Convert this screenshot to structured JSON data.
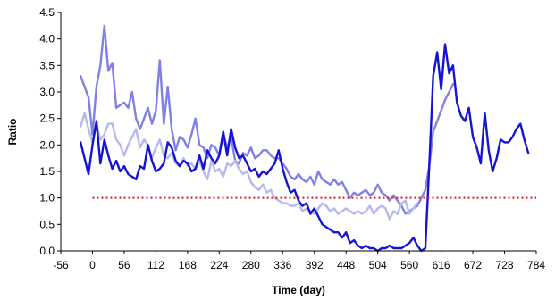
{
  "chart_data": {
    "type": "line",
    "title": "",
    "xlabel": "Time (day)",
    "ylabel": "Ratio",
    "xlim": [
      -56,
      784
    ],
    "ylim": [
      0,
      4.5
    ],
    "xticks": [
      -56,
      0,
      56,
      112,
      168,
      224,
      280,
      336,
      392,
      448,
      504,
      560,
      616,
      672,
      728,
      784
    ],
    "yticks": [
      0,
      0.5,
      1,
      1.5,
      2,
      2.5,
      3,
      3.5,
      4,
      4.5
    ],
    "ytick_labels": [
      "0.0",
      "0.5",
      "1.0",
      "1.5",
      "2.0",
      "2.5",
      "3.0",
      "3.5",
      "4.0",
      "4.5"
    ],
    "grid": false,
    "legend": "none",
    "reference_line": {
      "y": 1.0,
      "color": "#e8141e",
      "style": "dotted"
    },
    "series": [
      {
        "color": "#8080e6",
        "points": [
          [
            -21,
            3.3
          ],
          [
            -14,
            3.1
          ],
          [
            -7,
            2.9
          ],
          [
            0,
            2.2
          ],
          [
            7,
            3.1
          ],
          [
            14,
            3.5
          ],
          [
            21,
            4.25
          ],
          [
            28,
            3.4
          ],
          [
            35,
            3.55
          ],
          [
            42,
            2.7
          ],
          [
            49,
            2.75
          ],
          [
            56,
            2.8
          ],
          [
            63,
            2.7
          ],
          [
            70,
            3.0
          ],
          [
            77,
            2.5
          ],
          [
            84,
            2.3
          ],
          [
            91,
            2.5
          ],
          [
            98,
            2.7
          ],
          [
            105,
            2.4
          ],
          [
            112,
            2.65
          ],
          [
            119,
            3.6
          ],
          [
            126,
            2.4
          ],
          [
            133,
            3.1
          ],
          [
            140,
            2.3
          ],
          [
            147,
            1.9
          ],
          [
            154,
            2.15
          ],
          [
            161,
            2.1
          ],
          [
            168,
            1.95
          ],
          [
            175,
            2.2
          ],
          [
            182,
            2.5
          ],
          [
            189,
            2.0
          ],
          [
            196,
            1.95
          ],
          [
            203,
            1.75
          ],
          [
            210,
            2.0
          ],
          [
            217,
            1.95
          ],
          [
            224,
            1.8
          ],
          [
            231,
            2.2
          ],
          [
            238,
            1.95
          ],
          [
            245,
            2.15
          ],
          [
            252,
            1.7
          ],
          [
            259,
            1.65
          ],
          [
            266,
            1.85
          ],
          [
            273,
            1.8
          ],
          [
            280,
            1.95
          ],
          [
            287,
            1.75
          ],
          [
            294,
            1.8
          ],
          [
            301,
            1.9
          ],
          [
            308,
            1.9
          ],
          [
            315,
            1.8
          ],
          [
            322,
            1.75
          ],
          [
            329,
            1.75
          ],
          [
            336,
            1.65
          ],
          [
            343,
            1.55
          ],
          [
            350,
            1.4
          ],
          [
            357,
            1.35
          ],
          [
            364,
            1.45
          ],
          [
            371,
            1.35
          ],
          [
            378,
            1.3
          ],
          [
            385,
            1.4
          ],
          [
            392,
            1.25
          ],
          [
            399,
            1.5
          ],
          [
            406,
            1.35
          ],
          [
            413,
            1.3
          ],
          [
            420,
            1.25
          ],
          [
            427,
            1.35
          ],
          [
            434,
            1.25
          ],
          [
            441,
            1.3
          ],
          [
            448,
            1.15
          ],
          [
            455,
            1.0
          ],
          [
            462,
            1.1
          ],
          [
            469,
            1.05
          ],
          [
            476,
            1.1
          ],
          [
            483,
            1.15
          ],
          [
            490,
            1.05
          ],
          [
            497,
            1.1
          ],
          [
            504,
            1.25
          ],
          [
            511,
            1.1
          ],
          [
            518,
            1.05
          ],
          [
            525,
            0.95
          ],
          [
            532,
            1.05
          ],
          [
            539,
            0.95
          ],
          [
            546,
            0.85
          ],
          [
            553,
            0.7
          ],
          [
            560,
            0.75
          ],
          [
            567,
            0.8
          ],
          [
            574,
            0.85
          ],
          [
            581,
            1.0
          ],
          [
            588,
            1.15
          ],
          [
            595,
            1.6
          ],
          [
            602,
            2.25
          ],
          [
            609,
            2.45
          ],
          [
            616,
            2.65
          ],
          [
            623,
            2.85
          ],
          [
            630,
            3.0
          ],
          [
            637,
            3.15
          ]
        ]
      },
      {
        "color": "#b8b8ee",
        "points": [
          [
            -21,
            2.35
          ],
          [
            -14,
            2.6
          ],
          [
            -7,
            2.3
          ],
          [
            0,
            2.05
          ],
          [
            7,
            2.4
          ],
          [
            14,
            2.1
          ],
          [
            21,
            2.2
          ],
          [
            28,
            2.4
          ],
          [
            35,
            2.4
          ],
          [
            42,
            2.1
          ],
          [
            49,
            2.0
          ],
          [
            56,
            1.8
          ],
          [
            63,
            2.0
          ],
          [
            70,
            2.15
          ],
          [
            77,
            2.3
          ],
          [
            84,
            1.95
          ],
          [
            91,
            2.1
          ],
          [
            98,
            2.0
          ],
          [
            105,
            1.75
          ],
          [
            112,
            1.95
          ],
          [
            119,
            2.1
          ],
          [
            126,
            1.8
          ],
          [
            133,
            1.75
          ],
          [
            140,
            1.85
          ],
          [
            147,
            1.65
          ],
          [
            154,
            1.6
          ],
          [
            161,
            1.75
          ],
          [
            168,
            1.6
          ],
          [
            175,
            1.65
          ],
          [
            182,
            1.55
          ],
          [
            189,
            1.7
          ],
          [
            196,
            1.5
          ],
          [
            203,
            1.35
          ],
          [
            210,
            1.7
          ],
          [
            217,
            1.5
          ],
          [
            224,
            1.55
          ],
          [
            231,
            1.4
          ],
          [
            238,
            1.65
          ],
          [
            245,
            1.6
          ],
          [
            252,
            1.7
          ],
          [
            259,
            1.55
          ],
          [
            266,
            1.45
          ],
          [
            273,
            1.5
          ],
          [
            280,
            1.3
          ],
          [
            287,
            1.2
          ],
          [
            294,
            1.15
          ],
          [
            301,
            1.25
          ],
          [
            308,
            1.1
          ],
          [
            315,
            1.15
          ],
          [
            322,
            1.0
          ],
          [
            329,
            0.95
          ],
          [
            336,
            0.9
          ],
          [
            343,
            0.9
          ],
          [
            350,
            0.85
          ],
          [
            357,
            0.85
          ],
          [
            364,
            0.9
          ],
          [
            371,
            0.75
          ],
          [
            378,
            0.8
          ],
          [
            385,
            0.75
          ],
          [
            392,
            0.7
          ],
          [
            399,
            0.8
          ],
          [
            406,
            0.9
          ],
          [
            413,
            0.85
          ],
          [
            420,
            0.75
          ],
          [
            427,
            0.8
          ],
          [
            434,
            0.7
          ],
          [
            441,
            0.75
          ],
          [
            448,
            0.8
          ],
          [
            455,
            0.75
          ],
          [
            462,
            0.7
          ],
          [
            469,
            0.75
          ],
          [
            476,
            0.7
          ],
          [
            483,
            0.75
          ],
          [
            490,
            0.85
          ],
          [
            497,
            0.7
          ],
          [
            504,
            0.8
          ],
          [
            511,
            0.85
          ],
          [
            518,
            0.8
          ],
          [
            525,
            0.6
          ],
          [
            532,
            0.75
          ],
          [
            539,
            0.7
          ],
          [
            546,
            0.9
          ],
          [
            553,
            0.95
          ],
          [
            560,
            0.7
          ],
          [
            567,
            0.8
          ],
          [
            574,
            0.9
          ]
        ]
      },
      {
        "color": "#1414d2",
        "points": [
          [
            -21,
            2.05
          ],
          [
            -14,
            1.75
          ],
          [
            -7,
            1.45
          ],
          [
            0,
            2.0
          ],
          [
            7,
            2.45
          ],
          [
            14,
            1.65
          ],
          [
            21,
            2.1
          ],
          [
            28,
            1.8
          ],
          [
            35,
            1.55
          ],
          [
            42,
            1.7
          ],
          [
            49,
            1.5
          ],
          [
            56,
            1.6
          ],
          [
            63,
            1.45
          ],
          [
            70,
            1.4
          ],
          [
            77,
            1.35
          ],
          [
            84,
            1.6
          ],
          [
            91,
            1.55
          ],
          [
            98,
            2.0
          ],
          [
            105,
            1.7
          ],
          [
            112,
            1.5
          ],
          [
            119,
            1.55
          ],
          [
            126,
            1.65
          ],
          [
            133,
            2.05
          ],
          [
            140,
            1.95
          ],
          [
            147,
            1.7
          ],
          [
            154,
            1.6
          ],
          [
            161,
            1.7
          ],
          [
            168,
            1.65
          ],
          [
            175,
            1.5
          ],
          [
            182,
            1.55
          ],
          [
            189,
            1.8
          ],
          [
            196,
            1.55
          ],
          [
            203,
            1.9
          ],
          [
            210,
            1.75
          ],
          [
            217,
            1.65
          ],
          [
            224,
            1.8
          ],
          [
            231,
            2.25
          ],
          [
            238,
            1.8
          ],
          [
            245,
            2.3
          ],
          [
            252,
            1.95
          ],
          [
            259,
            1.75
          ],
          [
            266,
            1.8
          ],
          [
            273,
            1.65
          ],
          [
            280,
            1.5
          ],
          [
            287,
            1.55
          ],
          [
            294,
            1.4
          ],
          [
            301,
            1.5
          ],
          [
            308,
            1.45
          ],
          [
            315,
            1.55
          ],
          [
            322,
            1.65
          ],
          [
            329,
            1.9
          ],
          [
            336,
            1.55
          ],
          [
            343,
            1.3
          ],
          [
            350,
            1.1
          ],
          [
            357,
            1.15
          ],
          [
            364,
            0.95
          ],
          [
            371,
            0.85
          ],
          [
            378,
            0.9
          ],
          [
            385,
            0.7
          ],
          [
            392,
            0.8
          ],
          [
            399,
            0.65
          ],
          [
            406,
            0.5
          ],
          [
            413,
            0.45
          ],
          [
            420,
            0.4
          ],
          [
            427,
            0.35
          ],
          [
            434,
            0.35
          ],
          [
            441,
            0.25
          ],
          [
            448,
            0.35
          ],
          [
            455,
            0.15
          ],
          [
            462,
            0.2
          ],
          [
            469,
            0.1
          ],
          [
            476,
            0.05
          ],
          [
            483,
            0.1
          ],
          [
            490,
            0.05
          ],
          [
            497,
            0.05
          ],
          [
            504,
            0.0
          ],
          [
            511,
            0.05
          ],
          [
            518,
            0.05
          ],
          [
            525,
            0.1
          ],
          [
            532,
            0.05
          ],
          [
            539,
            0.05
          ],
          [
            546,
            0.05
          ],
          [
            553,
            0.1
          ],
          [
            560,
            0.15
          ],
          [
            567,
            0.25
          ],
          [
            574,
            0.1
          ],
          [
            581,
            0.0
          ],
          [
            588,
            0.05
          ],
          [
            595,
            1.6
          ],
          [
            602,
            3.3
          ],
          [
            609,
            3.75
          ],
          [
            616,
            3.05
          ],
          [
            623,
            3.9
          ],
          [
            630,
            3.35
          ],
          [
            637,
            3.5
          ],
          [
            644,
            2.8
          ],
          [
            651,
            2.55
          ],
          [
            658,
            2.45
          ],
          [
            665,
            2.7
          ],
          [
            672,
            2.15
          ],
          [
            679,
            1.95
          ],
          [
            686,
            1.65
          ],
          [
            693,
            2.6
          ],
          [
            700,
            1.9
          ],
          [
            707,
            1.5
          ],
          [
            714,
            1.75
          ],
          [
            721,
            2.1
          ],
          [
            728,
            2.05
          ],
          [
            735,
            2.05
          ],
          [
            742,
            2.15
          ],
          [
            749,
            2.3
          ],
          [
            756,
            2.4
          ],
          [
            763,
            2.1
          ],
          [
            770,
            1.85
          ]
        ]
      }
    ]
  }
}
